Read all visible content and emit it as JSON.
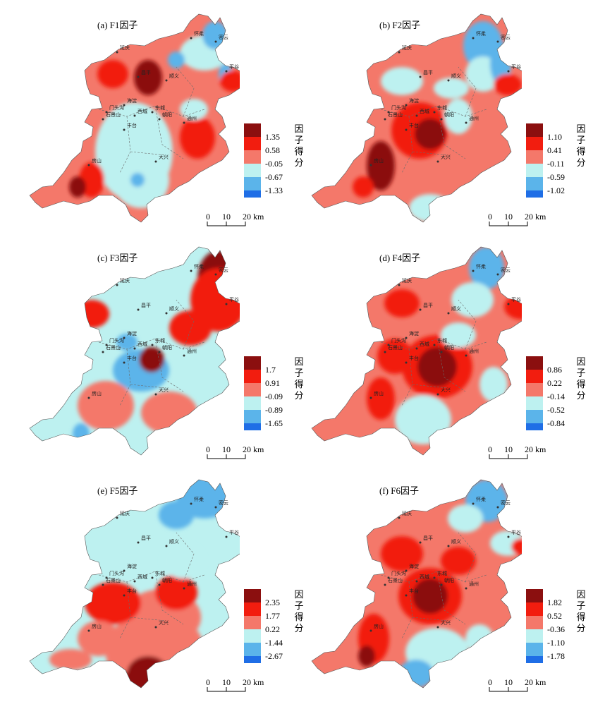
{
  "panels": [
    {
      "title": "(a) F1因子",
      "legend_title": "因子得分",
      "legend_values": [
        "1.35",
        "0.58",
        "-0.05",
        "-0.67",
        "-1.33"
      ],
      "pattern": "f1"
    },
    {
      "title": "(b) F2因子",
      "legend_title": "因子得分",
      "legend_values": [
        "1.10",
        "0.41",
        "-0.11",
        "-0.59",
        "-1.02"
      ],
      "pattern": "f2"
    },
    {
      "title": "(c) F3因子",
      "legend_title": "因子得分",
      "legend_values": [
        "1.7",
        "0.91",
        "-0.09",
        "-0.89",
        "-1.65"
      ],
      "pattern": "f3"
    },
    {
      "title": "(d) F4因子",
      "legend_title": "因子得分",
      "legend_values": [
        "0.86",
        "0.22",
        "-0.14",
        "-0.52",
        "-0.84"
      ],
      "pattern": "f4"
    },
    {
      "title": "(e) F5因子",
      "legend_title": "因子得分",
      "legend_values": [
        "2.35",
        "1.77",
        "0.22",
        "-1.44",
        "-2.67"
      ],
      "pattern": "f5"
    },
    {
      "title": "(f) F6因子",
      "legend_title": "因子得分",
      "legend_values": [
        "1.82",
        "0.52",
        "-0.36",
        "-1.10",
        "-1.78"
      ],
      "pattern": "f6"
    }
  ],
  "legend_colors": [
    "#8b0f0f",
    "#f21d0f",
    "#f4786a",
    "#bdf1f0",
    "#5bb4ea",
    "#1f6ee6"
  ],
  "scale_bar": {
    "labels": [
      "0",
      "10",
      "20 km"
    ]
  },
  "place_labels": [
    "怀柔",
    "平谷",
    "顺义",
    "海淀",
    "东城",
    "西城",
    "朝阳",
    "石景山",
    "丰台",
    "通州",
    "房山",
    "大兴",
    "门头沟",
    "密云",
    "延庆",
    "昌平"
  ]
}
